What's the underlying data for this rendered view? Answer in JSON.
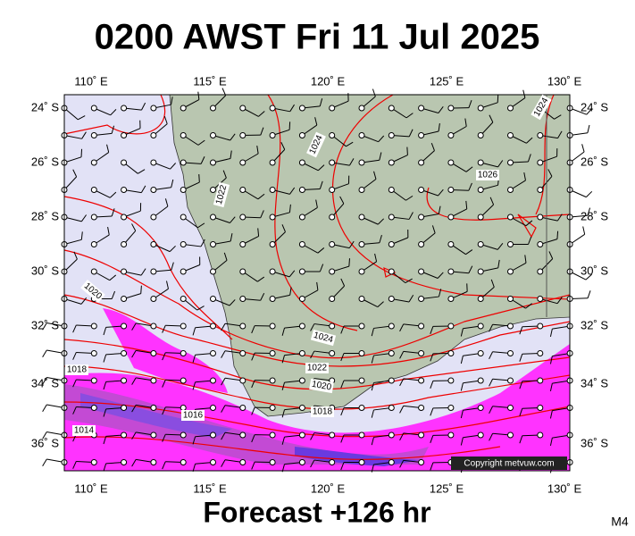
{
  "title": "0200 AWST Fri 11 Jul 2025",
  "footer": "Forecast +126 hr",
  "model": "M4",
  "copyright": "Copyright metvuw.com",
  "longitudes": [
    "110˚ E",
    "115˚ E",
    "120˚ E",
    "125˚ E",
    "130˚ E"
  ],
  "latitudes": [
    "24˚ S",
    "26˚ S",
    "28˚ S",
    "30˚ S",
    "32˚ S",
    "34˚ S",
    "36˚ S"
  ],
  "isobar_labels": [
    "1024",
    "1024",
    "1022",
    "1026",
    "1020",
    "1024",
    "1022",
    "1020",
    "1018",
    "1018",
    "1016",
    "1014"
  ]
}
